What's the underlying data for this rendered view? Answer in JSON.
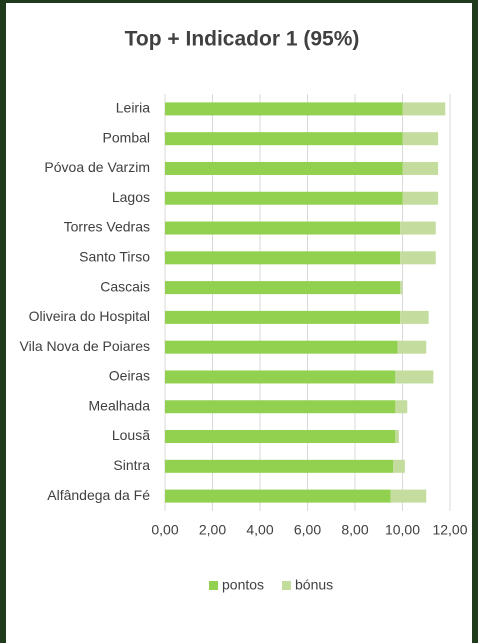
{
  "chart_data": {
    "type": "stacked-barh",
    "title": "Top + Indicador 1 (95%)",
    "categories": [
      "Leiria",
      "Pombal",
      "Póvoa de Varzim",
      "Lagos",
      "Torres Vedras",
      "Santo Tirso",
      "Cascais",
      "Oliveira do Hospital",
      "Vila Nova de Poiares",
      "Oeiras",
      "Mealhada",
      "Lousã",
      "Sintra",
      "Alfândega da Fé"
    ],
    "series": [
      {
        "name": "pontos",
        "color": "#92d050",
        "values": [
          10.0,
          10.0,
          10.0,
          10.0,
          9.9,
          9.9,
          9.9,
          9.9,
          9.8,
          9.7,
          9.7,
          9.7,
          9.6,
          9.5
        ]
      },
      {
        "name": "bónus",
        "color": "#c4dd9e",
        "values": [
          1.8,
          1.5,
          1.5,
          1.5,
          1.5,
          1.5,
          0.1,
          1.2,
          1.2,
          1.6,
          0.5,
          0.15,
          0.5,
          1.5
        ]
      }
    ],
    "xlim": [
      0,
      12
    ],
    "xticks": [
      {
        "value": 0,
        "label": "0,00"
      },
      {
        "value": 2,
        "label": "2,00"
      },
      {
        "value": 4,
        "label": "4,00"
      },
      {
        "value": 6,
        "label": "6,00"
      },
      {
        "value": 8,
        "label": "8,00"
      },
      {
        "value": 10,
        "label": "10,00"
      },
      {
        "value": 12,
        "label": "12,00"
      }
    ],
    "grid": true,
    "legend": "bottom"
  }
}
